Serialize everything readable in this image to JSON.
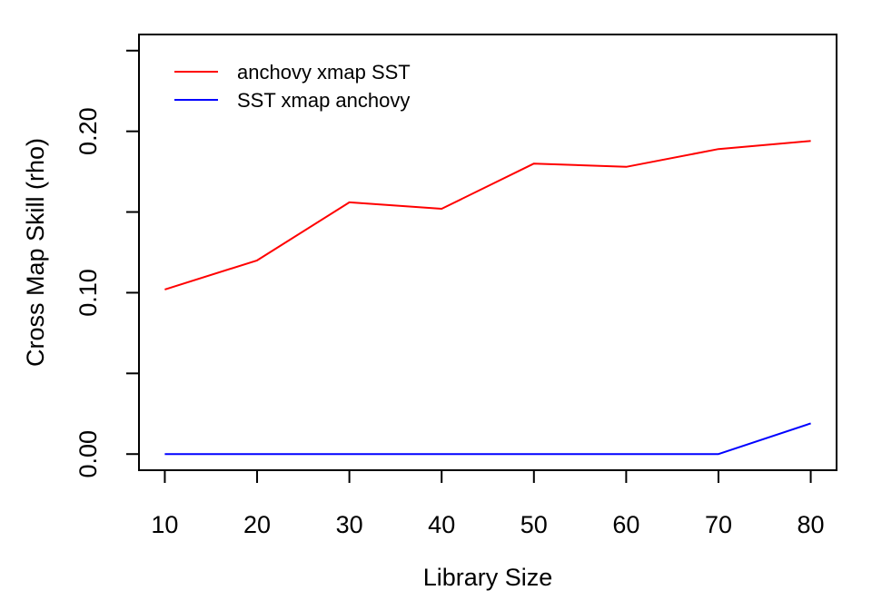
{
  "chart_data": {
    "type": "line",
    "title": "",
    "xlabel": "Library Size",
    "ylabel": "Cross Map Skill (rho)",
    "x": [
      10,
      20,
      30,
      40,
      50,
      60,
      70,
      80
    ],
    "xticks": [
      "10",
      "20",
      "30",
      "40",
      "50",
      "60",
      "70",
      "80"
    ],
    "yticks": [
      {
        "value": 0.0,
        "label": "0.00"
      },
      {
        "value": 0.05,
        "label": ""
      },
      {
        "value": 0.1,
        "label": "0.10"
      },
      {
        "value": 0.15,
        "label": ""
      },
      {
        "value": 0.2,
        "label": "0.20"
      },
      {
        "value": 0.25,
        "label": ""
      }
    ],
    "xlim": [
      7.2,
      82.8
    ],
    "ylim": [
      -0.01,
      0.26
    ],
    "grid": false,
    "legend_position": "top-left",
    "series": [
      {
        "name": "anchovy xmap SST",
        "color": "#ff0000",
        "values": [
          0.102,
          0.12,
          0.156,
          0.152,
          0.18,
          0.178,
          0.189,
          0.194
        ]
      },
      {
        "name": "SST xmap anchovy",
        "color": "#0000ff",
        "values": [
          0.0,
          0.0,
          0.0,
          0.0,
          0.0,
          0.0,
          0.0,
          0.019
        ]
      }
    ]
  }
}
